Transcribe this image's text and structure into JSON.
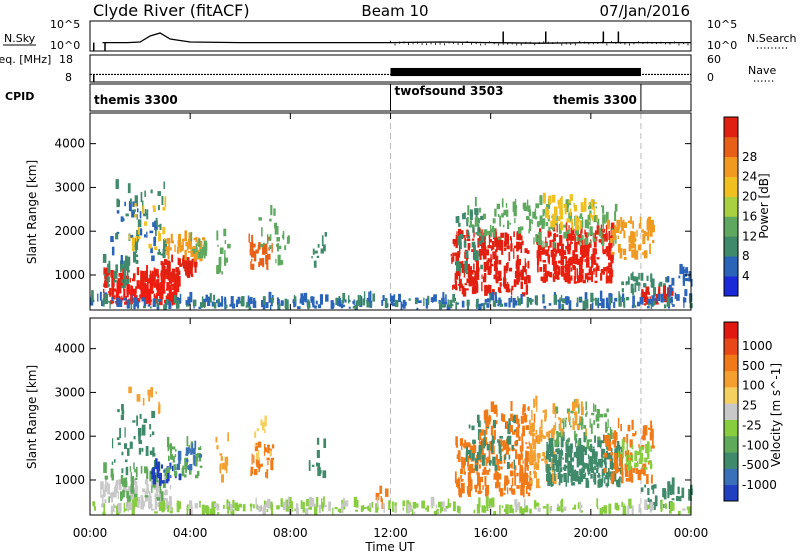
{
  "header": {
    "station": "Clyde River (fitACF)",
    "beam": "Beam 10",
    "date": "07/Jan/2016"
  },
  "chart_data": [
    {
      "type": "line",
      "panel": "noise",
      "left_label": "N.Sky",
      "right_label": "N.Search",
      "left_ticks": [
        "10^5",
        "10^0"
      ],
      "right_ticks": [
        "10^5",
        "10^0"
      ],
      "x_range_hours": [
        0,
        24
      ],
      "series": [
        {
          "name": "N.Sky",
          "style": "solid",
          "x": [
            0.5,
            1,
            1.5,
            2,
            2.4,
            2.8,
            3.2,
            4,
            6,
            8,
            10,
            12,
            14,
            16,
            18,
            20,
            22,
            24
          ],
          "y": [
            0.72,
            0.72,
            0.72,
            0.7,
            0.5,
            0.4,
            0.6,
            0.7,
            0.72,
            0.72,
            0.72,
            0.72,
            0.7,
            0.72,
            0.74,
            0.72,
            0.72,
            0.72
          ]
        }
      ],
      "spikes_hours": [
        0.15,
        0.6,
        16.5,
        20.5,
        21.1,
        18.2
      ]
    },
    {
      "type": "line",
      "panel": "frequency",
      "left_label": "Freq. [MHz]",
      "right_label": "Nave",
      "left_ticks": [
        "18",
        "8"
      ],
      "right_ticks": [
        "60",
        "0"
      ],
      "x_range_hours": [
        0,
        24
      ],
      "series": [
        {
          "name": "Freq.",
          "style": "solid",
          "x": [
            0,
            24
          ],
          "y": [
            0.72,
            0.72
          ]
        }
      ],
      "dense_band_hours": [
        12,
        22
      ]
    },
    {
      "type": "table",
      "panel": "cpid",
      "label": "CPID",
      "programs": [
        {
          "name": "themis 3300",
          "start_hour": 0,
          "end_hour": 12,
          "label_anchor": "start"
        },
        {
          "name": "twofsound 3503",
          "start_hour": 12,
          "end_hour": 22,
          "label_anchor": "start"
        },
        {
          "name": "themis 3300",
          "start_hour": 22,
          "end_hour": 24,
          "label_anchor": "end"
        }
      ]
    },
    {
      "type": "heatmap",
      "panel": "power",
      "ylabel": "Slant Range [km]",
      "yticks": [
        1000,
        2000,
        3000,
        4000
      ],
      "ylim": [
        200,
        4700
      ],
      "xlim": [
        0,
        24
      ],
      "colorbar": {
        "label": "Power [dB]",
        "ticks": [
          "4",
          "8",
          "12",
          "16",
          "20",
          "24",
          "28"
        ],
        "colors": [
          "#1a2ad8",
          "#2a64b8",
          "#3f8a6a",
          "#5fa860",
          "#a8d040",
          "#f0c020",
          "#f09a20",
          "#e86018",
          "#e02010"
        ]
      },
      "patches": [
        {
          "t0": 0.5,
          "t1": 3.5,
          "r0": 300,
          "r1": 1000,
          "color": "#e82010",
          "n": 150
        },
        {
          "t0": 1.0,
          "t1": 3.5,
          "r0": 300,
          "r1": 700,
          "color": "#f01a10",
          "n": 80
        },
        {
          "t0": 0.5,
          "t1": 1.5,
          "r0": 700,
          "r1": 1300,
          "color": "#3f8a6a",
          "n": 30
        },
        {
          "t0": 0.8,
          "t1": 2.8,
          "r0": 1100,
          "r1": 2600,
          "color": "#2a64b8",
          "n": 30
        },
        {
          "t0": 1.0,
          "t1": 3.0,
          "r0": 1200,
          "r1": 3000,
          "color": "#3f8a6a",
          "n": 40
        },
        {
          "t0": 1.5,
          "t1": 3.0,
          "r0": 1500,
          "r1": 2800,
          "color": "#f0c020",
          "n": 20
        },
        {
          "t0": 2.8,
          "t1": 4.2,
          "r0": 900,
          "r1": 1300,
          "color": "#e02010",
          "n": 50
        },
        {
          "t0": 3.0,
          "t1": 4.5,
          "r0": 1300,
          "r1": 1800,
          "color": "#f09a20",
          "n": 50
        },
        {
          "t0": 4.0,
          "t1": 4.6,
          "r0": 1300,
          "r1": 1800,
          "color": "#5fa860",
          "n": 15
        },
        {
          "t0": 5.0,
          "t1": 5.5,
          "r0": 900,
          "r1": 1900,
          "color": "#5fa860",
          "n": 15
        },
        {
          "t0": 6.3,
          "t1": 7.3,
          "r0": 1100,
          "r1": 1800,
          "color": "#e86018",
          "n": 25
        },
        {
          "t0": 6.6,
          "t1": 7.4,
          "r0": 1500,
          "r1": 2400,
          "color": "#5fa860",
          "n": 12
        },
        {
          "t0": 7.3,
          "t1": 8.2,
          "r0": 1200,
          "r1": 1900,
          "color": "#5fa860",
          "n": 12
        },
        {
          "t0": 8.7,
          "t1": 9.4,
          "r0": 1000,
          "r1": 1900,
          "color": "#3f8a6a",
          "n": 10
        },
        {
          "t0": 14.4,
          "t1": 17.5,
          "r0": 500,
          "r1": 1900,
          "color": "#e02010",
          "n": 260
        },
        {
          "t0": 14.6,
          "t1": 15.6,
          "r0": 1000,
          "r1": 2400,
          "color": "#3f8a6a",
          "n": 40
        },
        {
          "t0": 15.0,
          "t1": 17.8,
          "r0": 1800,
          "r1": 2600,
          "color": "#5fa860",
          "n": 50
        },
        {
          "t0": 17.8,
          "t1": 20.8,
          "r0": 800,
          "r1": 2000,
          "color": "#e82010",
          "n": 260
        },
        {
          "t0": 17.5,
          "t1": 21.0,
          "r0": 1600,
          "r1": 2600,
          "color": "#5fa860",
          "n": 80
        },
        {
          "t0": 18.0,
          "t1": 20.5,
          "r0": 2000,
          "r1": 2700,
          "color": "#f0c020",
          "n": 50
        },
        {
          "t0": 20.5,
          "t1": 22.5,
          "r0": 1300,
          "r1": 2200,
          "color": "#f09a20",
          "n": 60
        },
        {
          "t0": 21.2,
          "t1": 23.0,
          "r0": 500,
          "r1": 900,
          "color": "#3f8a6a",
          "n": 30
        },
        {
          "t0": 22.0,
          "t1": 23.2,
          "r0": 300,
          "r1": 600,
          "color": "#e02010",
          "n": 25
        },
        {
          "t0": 23.0,
          "t1": 24.0,
          "r0": 300,
          "r1": 1100,
          "color": "#2a64b8",
          "n": 25
        },
        {
          "t0": 0.0,
          "t1": 24.0,
          "r0": 200,
          "r1": 420,
          "color": "#2a64b8",
          "n": 220
        },
        {
          "t0": 0.0,
          "t1": 24.0,
          "r0": 200,
          "r1": 420,
          "color": "#3f8a6a",
          "n": 120
        }
      ]
    },
    {
      "type": "heatmap",
      "panel": "velocity",
      "ylabel": "Slant Range [km]",
      "yticks": [
        1000,
        2000,
        3000,
        4000
      ],
      "ylim": [
        200,
        4700
      ],
      "xlim": [
        0,
        24
      ],
      "xlabel": "Time UT",
      "xticks": [
        "00:00",
        "04:00",
        "08:00",
        "12:00",
        "16:00",
        "20:00",
        "00:00"
      ],
      "colorbar": {
        "label": "Velocity [m s^-1]",
        "ticks": [
          "1000",
          "500",
          "100",
          "25",
          "-25",
          "-100",
          "-500",
          "-1000"
        ],
        "colors": [
          "#2040c0",
          "#3a70b8",
          "#3f8a6a",
          "#5faa5a",
          "#88cc40",
          "#c8c8c8",
          "#f4d060",
          "#f4a030",
          "#f07a18",
          "#e84818",
          "#e01810"
        ]
      },
      "patches": [
        {
          "t0": 0.4,
          "t1": 3.2,
          "r0": 300,
          "r1": 900,
          "color": "#c8c8c8",
          "n": 90
        },
        {
          "t0": 0.5,
          "t1": 3.0,
          "r0": 400,
          "r1": 1200,
          "color": "#5faa5a",
          "n": 40
        },
        {
          "t0": 0.8,
          "t1": 2.6,
          "r0": 1100,
          "r1": 2600,
          "color": "#3f8a6a",
          "n": 40
        },
        {
          "t0": 1.5,
          "t1": 2.8,
          "r0": 2500,
          "r1": 3000,
          "color": "#f4a030",
          "n": 10
        },
        {
          "t0": 2.4,
          "t1": 3.6,
          "r0": 800,
          "r1": 1300,
          "color": "#2040c0",
          "n": 25
        },
        {
          "t0": 3.0,
          "t1": 4.4,
          "r0": 1000,
          "r1": 1800,
          "color": "#5faa5a",
          "n": 45
        },
        {
          "t0": 3.3,
          "t1": 4.4,
          "r0": 1200,
          "r1": 1700,
          "color": "#3a70b8",
          "n": 15
        },
        {
          "t0": 5.0,
          "t1": 5.5,
          "r0": 900,
          "r1": 1900,
          "color": "#f4a030",
          "n": 12
        },
        {
          "t0": 6.4,
          "t1": 7.3,
          "r0": 1000,
          "r1": 1800,
          "color": "#f07a18",
          "n": 30
        },
        {
          "t0": 6.5,
          "t1": 7.2,
          "r0": 1300,
          "r1": 2300,
          "color": "#f4d060",
          "n": 10
        },
        {
          "t0": 8.7,
          "t1": 9.4,
          "r0": 1000,
          "r1": 1900,
          "color": "#3f8a6a",
          "n": 10
        },
        {
          "t0": 11.4,
          "t1": 11.8,
          "r0": 300,
          "r1": 700,
          "color": "#f07a18",
          "n": 6
        },
        {
          "t0": 14.5,
          "t1": 17.6,
          "r0": 600,
          "r1": 1800,
          "color": "#f07a18",
          "n": 200
        },
        {
          "t0": 15.0,
          "t1": 17.0,
          "r0": 1200,
          "r1": 2400,
          "color": "#3f8a6a",
          "n": 60
        },
        {
          "t0": 15.5,
          "t1": 17.8,
          "r0": 1800,
          "r1": 2600,
          "color": "#f07a18",
          "n": 50
        },
        {
          "t0": 17.5,
          "t1": 18.5,
          "r0": 800,
          "r1": 2000,
          "color": "#f4a030",
          "n": 60
        },
        {
          "t0": 18.2,
          "t1": 21.2,
          "r0": 800,
          "r1": 1900,
          "color": "#3f8a6a",
          "n": 260
        },
        {
          "t0": 18.5,
          "t1": 20.8,
          "r0": 1700,
          "r1": 2600,
          "color": "#5faa5a",
          "n": 60
        },
        {
          "t0": 17.5,
          "t1": 20.0,
          "r0": 2000,
          "r1": 2700,
          "color": "#f4a030",
          "n": 40
        },
        {
          "t0": 20.5,
          "t1": 22.5,
          "r0": 900,
          "r1": 2200,
          "color": "#f07a18",
          "n": 80
        },
        {
          "t0": 21.0,
          "t1": 22.4,
          "r0": 1200,
          "r1": 1700,
          "color": "#88cc40",
          "n": 30
        },
        {
          "t0": 22.0,
          "t1": 24.0,
          "r0": 300,
          "r1": 900,
          "color": "#3f8a6a",
          "n": 35
        },
        {
          "t0": 0.0,
          "t1": 24.0,
          "r0": 200,
          "r1": 400,
          "color": "#88cc40",
          "n": 200
        },
        {
          "t0": 0.0,
          "t1": 24.0,
          "r0": 200,
          "r1": 400,
          "color": "#c8c8c8",
          "n": 80
        }
      ]
    }
  ]
}
